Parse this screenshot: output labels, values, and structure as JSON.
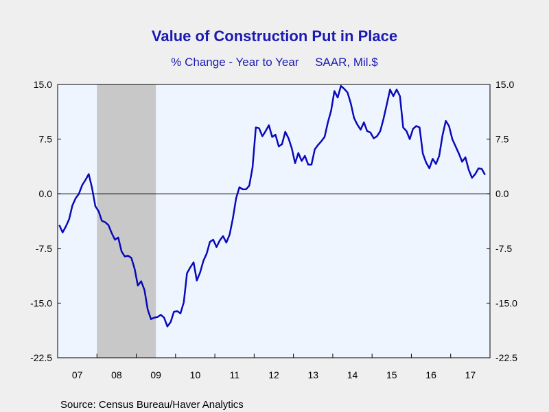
{
  "chart_data": {
    "type": "line",
    "title": "Value of Construction Put in Place",
    "subtitle": "% Change - Year to Year     SAAR, Mil.$",
    "source": "Source:  Census Bureau/Haver Analytics",
    "x_categories": [
      "07",
      "08",
      "09",
      "10",
      "11",
      "12",
      "13",
      "14",
      "15",
      "16",
      "17"
    ],
    "y_ticks": [
      "15.0",
      "7.5",
      "0.0",
      "-7.5",
      "-15.0",
      "-22.5"
    ],
    "ylim": [
      -22.5,
      15.0
    ],
    "zero_line": true,
    "recession_shading": {
      "start": "2008-01",
      "end": "2009-06"
    },
    "colors": {
      "line": "#0a0ab8",
      "plot_bg": "#eef5ff",
      "recession": "#c8c8c8",
      "title": "#1a1ab4"
    },
    "series": [
      {
        "frequency": "monthly",
        "start": "2007-01",
        "values": [
          -4.3,
          -5.3,
          -4.5,
          -3.5,
          -1.6,
          -0.6,
          0.0,
          1.2,
          1.9,
          2.7,
          0.8,
          -1.7,
          -2.4,
          -3.7,
          -3.9,
          -4.3,
          -5.4,
          -6.3,
          -6.0,
          -7.9,
          -8.6,
          -8.5,
          -8.8,
          -10.3,
          -12.6,
          -12.0,
          -13.2,
          -15.9,
          -17.2,
          -17.0,
          -16.9,
          -16.6,
          -17.0,
          -18.2,
          -17.6,
          -16.2,
          -16.1,
          -16.4,
          -14.9,
          -10.9,
          -10.1,
          -9.4,
          -11.9,
          -10.8,
          -9.2,
          -8.2,
          -6.6,
          -6.3,
          -7.3,
          -6.4,
          -5.8,
          -6.7,
          -5.6,
          -3.4,
          -0.6,
          0.9,
          0.6,
          0.6,
          1.1,
          3.6,
          9.1,
          9.0,
          7.9,
          8.6,
          9.4,
          7.8,
          8.1,
          6.5,
          6.8,
          8.5,
          7.6,
          6.2,
          4.2,
          5.6,
          4.5,
          5.2,
          4.0,
          4.0,
          6.1,
          6.7,
          7.2,
          7.8,
          9.8,
          11.4,
          14.1,
          13.2,
          14.8,
          14.4,
          13.9,
          12.4,
          10.4,
          9.5,
          8.8,
          9.8,
          8.6,
          8.4,
          7.6,
          7.9,
          8.6,
          10.3,
          12.3,
          14.3,
          13.4,
          14.3,
          13.4,
          9.1,
          8.6,
          7.5,
          8.9,
          9.3,
          9.1,
          5.5,
          4.3,
          3.5,
          4.8,
          4.1,
          5.2,
          8.0,
          10.0,
          9.3,
          7.5,
          6.5,
          5.5,
          4.4,
          5.0,
          3.3,
          2.2,
          2.7,
          3.5,
          3.4,
          2.6
        ]
      }
    ]
  }
}
